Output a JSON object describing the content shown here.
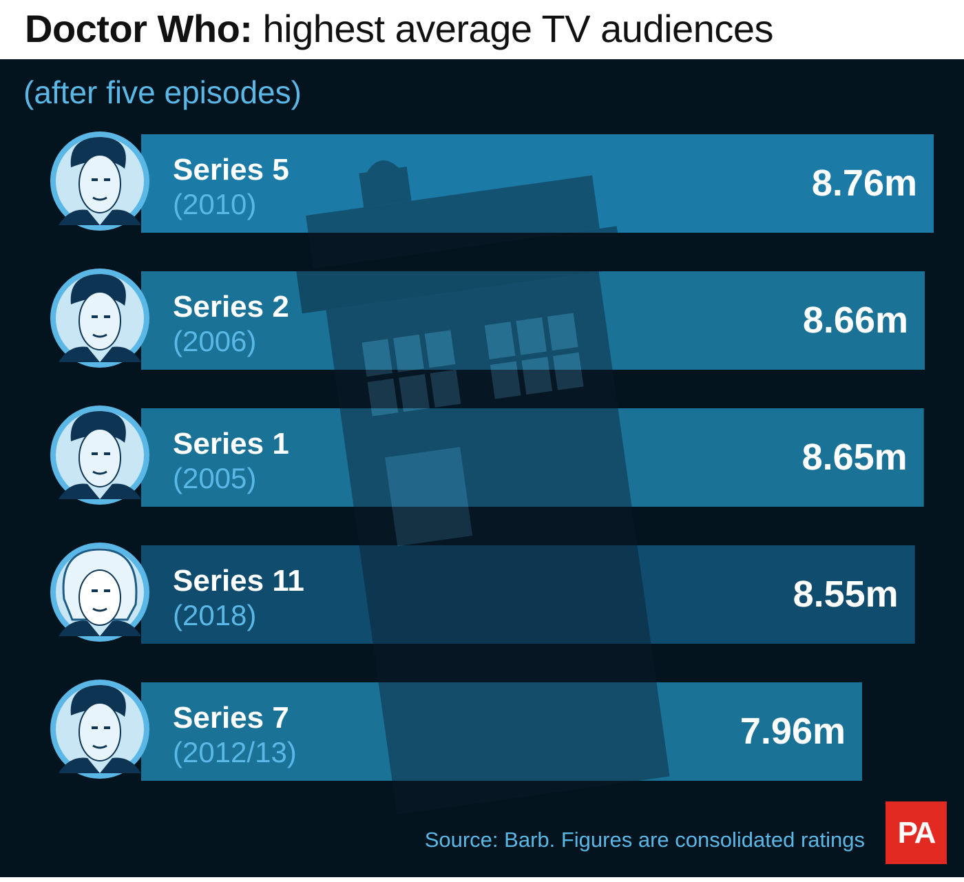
{
  "title": {
    "bold": "Doctor Who:",
    "regular": "highest average TV audiences"
  },
  "subtitle": "(after five episodes)",
  "source": "Source: Barb. Figures are consolidated ratings",
  "logo": "PA",
  "colors": {
    "background": "#03141f",
    "accent": "#5bb8e6",
    "bar_series_5": "#1b7ba6",
    "bar_series_2": "#1a7297",
    "bar_series_1": "#1a7297",
    "bar_series_11": "#0f4c6d",
    "bar_series_7": "#1a7297",
    "logo_red": "#e22a22"
  },
  "chart_data": {
    "type": "bar",
    "orientation": "horizontal",
    "categories": [
      "Series 5",
      "Series 2",
      "Series 1",
      "Series 11",
      "Series 7"
    ],
    "years": [
      "(2010)",
      "(2006)",
      "(2005)",
      "(2018)",
      "(2012/13)"
    ],
    "values": [
      8.76,
      8.66,
      8.65,
      8.55,
      7.96
    ],
    "value_labels": [
      "8.76m",
      "8.66m",
      "8.65m",
      "8.55m",
      "7.96m"
    ],
    "unit": "m",
    "icons": [
      "eleventh-doctor-portrait-icon",
      "tenth-doctor-portrait-icon",
      "ninth-doctor-portrait-icon",
      "thirteenth-doctor-portrait-icon",
      "eleventh-doctor-portrait-icon"
    ],
    "grid": false,
    "legend": "none",
    "title": "Doctor Who: highest average TV audiences",
    "subtitle": "(after five episodes)"
  }
}
